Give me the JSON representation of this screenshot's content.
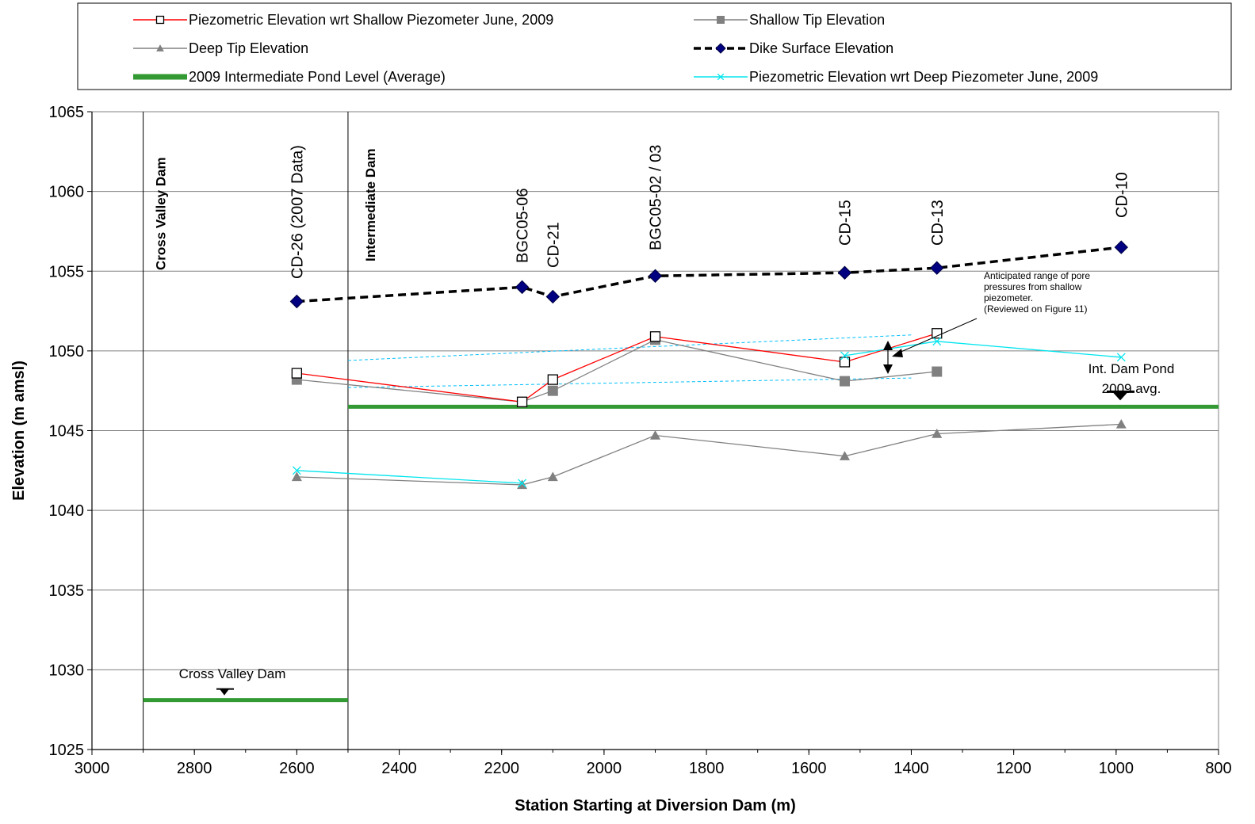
{
  "chart_data": {
    "type": "line",
    "xlabel": "Station Starting at Diversion Dam (m)",
    "ylabel": "Elevation (m amsl)",
    "xlim": [
      3000,
      800
    ],
    "x_reversed": true,
    "ylim": [
      1025,
      1065
    ],
    "x_ticks": [
      "3000",
      "2800",
      "2600",
      "2400",
      "2200",
      "2000",
      "1800",
      "1600",
      "1400",
      "1200",
      "1000",
      "800"
    ],
    "y_ticks": [
      "1025",
      "1030",
      "1035",
      "1040",
      "1045",
      "1050",
      "1055",
      "1060",
      "1065"
    ],
    "grid": "horizontal",
    "legend_position": "top",
    "series": [
      {
        "name": "Piezometric Elevation wrt Shallow Piezometer June, 2009",
        "color": "#ff0000",
        "marker": "open-square",
        "x": [
          2600,
          2160,
          2100,
          1900,
          1530,
          1350
        ],
        "y": [
          1048.6,
          1046.8,
          1048.2,
          1050.9,
          1049.3,
          1051.1
        ]
      },
      {
        "name": "Shallow Tip Elevation",
        "color": "#808080",
        "marker": "filled-square",
        "x": [
          2600,
          2160,
          2100,
          1900,
          1530,
          1350
        ],
        "y": [
          1048.2,
          1046.8,
          1047.5,
          1050.7,
          1048.1,
          1048.7
        ]
      },
      {
        "name": "Deep Tip Elevation",
        "color": "#808080",
        "marker": "triangle",
        "x": [
          2600,
          2160,
          2100,
          1900,
          1530,
          1350,
          990
        ],
        "y": [
          1042.1,
          1041.6,
          1042.1,
          1044.7,
          1043.4,
          1044.8,
          1045.4
        ]
      },
      {
        "name": "Dike Surface Elevation",
        "color": "#000000",
        "marker": "diamond",
        "marker_color": "#000080",
        "x": [
          2600,
          2160,
          2100,
          1900,
          1530,
          1350,
          990
        ],
        "y": [
          1053.1,
          1054.0,
          1053.4,
          1054.7,
          1054.9,
          1055.2,
          1056.5
        ]
      },
      {
        "name": "2009 Intermediate Pond Level (Average)",
        "color": "#339933",
        "marker": "none",
        "x": [
          2500,
          800
        ],
        "y": [
          1046.5,
          1046.5
        ]
      },
      {
        "name": "Piezometric Elevation wrt Deep Piezometer June, 2009",
        "color": "#00e5ee",
        "marker": "x",
        "x": [
          2600,
          2160
        ],
        "y": [
          1042.5,
          1041.7
        ],
        "x2": [
          1530,
          1350,
          990
        ],
        "y2": [
          1049.7,
          1050.6,
          1049.6
        ]
      }
    ],
    "cross_valley_pond": {
      "x": [
        2900,
        2500
      ],
      "y": 1028.1
    },
    "range_upper": {
      "x": [
        2500,
        1400
      ],
      "y": [
        1049.4,
        1051.0
      ]
    },
    "range_lower": {
      "x": [
        2500,
        1400
      ],
      "y": [
        1047.7,
        1048.3
      ]
    },
    "dam_lines": [
      2900,
      2500
    ],
    "instrument_labels": [
      {
        "text": "CD-26 (2007 Data)",
        "x": 2600
      },
      {
        "text": "BGC05-06",
        "x": 2160
      },
      {
        "text": "CD-21",
        "x": 2100
      },
      {
        "text": "BGC05-02 / 03",
        "x": 1900
      },
      {
        "text": "CD-15",
        "x": 1530
      },
      {
        "text": "CD-13",
        "x": 1350
      },
      {
        "text": "CD-10",
        "x": 990
      }
    ],
    "dam_labels": {
      "cross_valley": "Cross Valley Dam",
      "intermediate": "Intermediate Dam"
    },
    "annotations": {
      "cross_valley_pond": "Cross Valley Dam",
      "int_pond_line1": "Int. Dam Pond",
      "int_pond_line2": "2009 avg.",
      "range_note": [
        "Anticipated range of pore",
        "pressures from shallow",
        "piezometer.",
        "(Reviewed on Figure 11)"
      ]
    }
  }
}
